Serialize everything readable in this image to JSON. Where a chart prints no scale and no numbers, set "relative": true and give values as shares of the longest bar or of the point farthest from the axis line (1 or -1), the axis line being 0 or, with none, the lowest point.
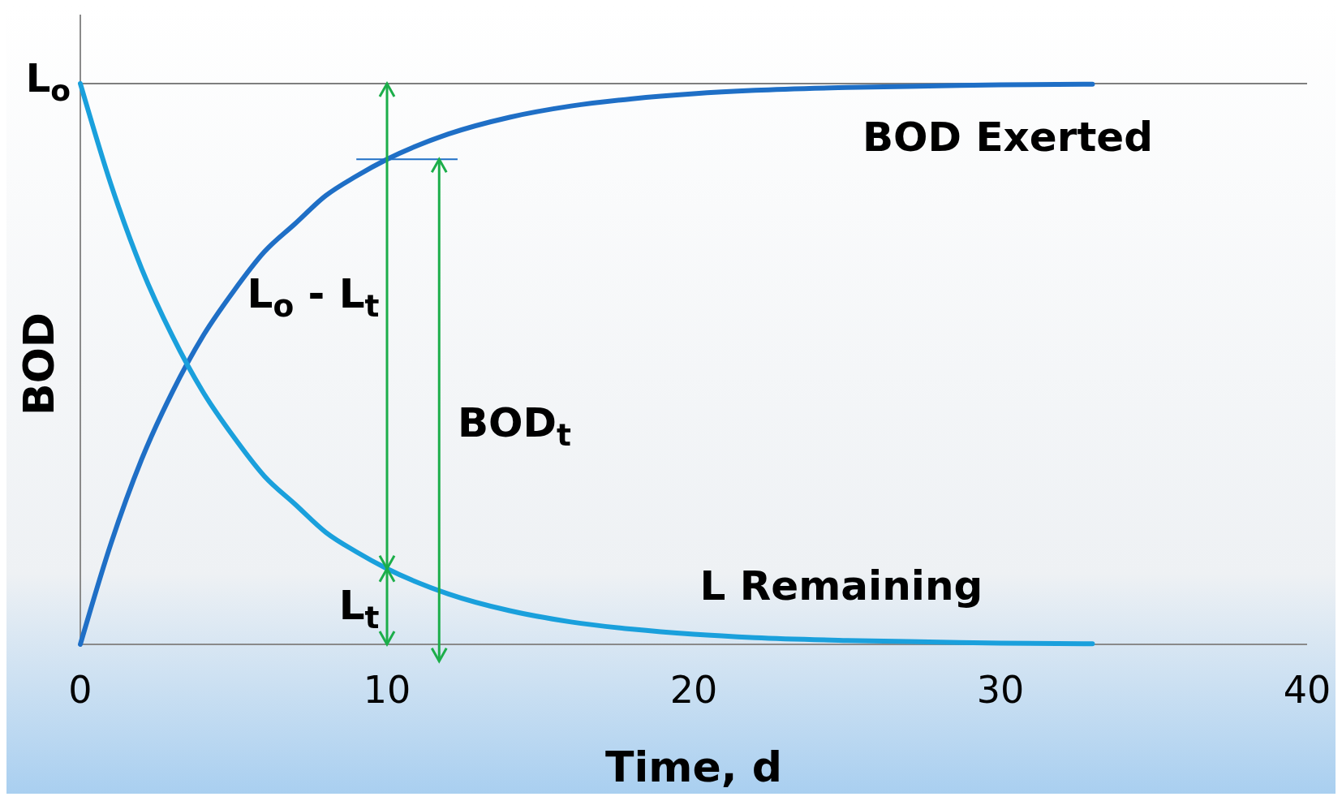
{
  "chart_data": {
    "type": "line",
    "relative": true,
    "xlabel": "Time, d",
    "ylabel": "BOD",
    "xlim": [
      0,
      40
    ],
    "xticks": [
      0,
      10,
      20,
      30,
      40
    ],
    "legend": false,
    "marker": "none",
    "line_style": "solid",
    "x": [
      0,
      1,
      2,
      3,
      4,
      5,
      6,
      7,
      8,
      9,
      10,
      12,
      14,
      16,
      18,
      20,
      22,
      25,
      28,
      30,
      33
    ],
    "series": [
      {
        "name": "BOD Exerted",
        "color": "#1f6fc6",
        "values": [
          0,
          0.18,
          0.33,
          0.45,
          0.55,
          0.63,
          0.7,
          0.75,
          0.8,
          0.835,
          0.865,
          0.91,
          0.94,
          0.96,
          0.973,
          0.982,
          0.988,
          0.993,
          0.996,
          0.998,
          0.999
        ]
      },
      {
        "name": "L Remaining",
        "color": "#1aa0dc",
        "values": [
          1,
          0.82,
          0.67,
          0.55,
          0.45,
          0.37,
          0.3,
          0.25,
          0.2,
          0.165,
          0.135,
          0.09,
          0.06,
          0.04,
          0.027,
          0.018,
          0.012,
          0.007,
          0.004,
          0.002,
          0.001
        ]
      }
    ],
    "ref_lines": [
      {
        "axis": "y",
        "value": 1,
        "label": "L$_{o}$",
        "color": "#7f7f7f"
      }
    ],
    "annotations": [
      "L$_{o}$ - L$_{t}$",
      "BOD$_{t}$",
      "L$_{t}$"
    ]
  }
}
